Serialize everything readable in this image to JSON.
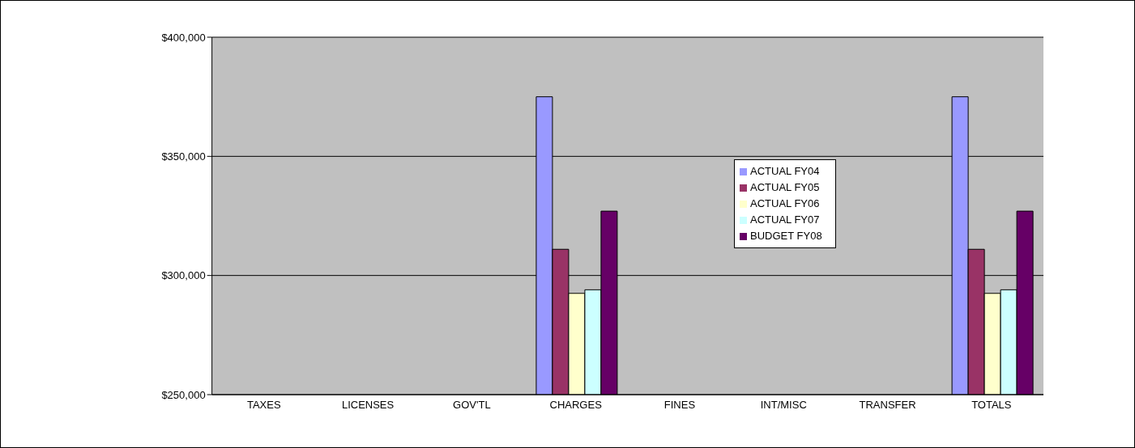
{
  "chart_data": {
    "type": "bar",
    "categories": [
      "TAXES",
      "LICENSES",
      "GOV'TL",
      "CHARGES",
      "FINES",
      "INT/MISC",
      "TRANSFER",
      "TOTALS"
    ],
    "series": [
      {
        "name": "ACTUAL FY04",
        "color": "#9999ff",
        "values": [
          null,
          null,
          null,
          375000,
          null,
          null,
          null,
          375000
        ]
      },
      {
        "name": "ACTUAL FY05",
        "color": "#993366",
        "values": [
          null,
          null,
          null,
          311000,
          null,
          null,
          null,
          311000
        ]
      },
      {
        "name": "ACTUAL FY06",
        "color": "#ffffcc",
        "values": [
          null,
          null,
          null,
          292500,
          null,
          null,
          null,
          292500
        ]
      },
      {
        "name": "ACTUAL FY07",
        "color": "#ccffff",
        "values": [
          null,
          null,
          null,
          294000,
          null,
          null,
          null,
          294000
        ]
      },
      {
        "name": "BUDGET FY08",
        "color": "#660066",
        "values": [
          null,
          null,
          null,
          327000,
          null,
          null,
          null,
          327000
        ]
      }
    ],
    "ylim": [
      250000,
      400000
    ],
    "yticks": [
      {
        "value": 250000,
        "label": "$250,000"
      },
      {
        "value": 300000,
        "label": "$300,000"
      },
      {
        "value": 350000,
        "label": "$350,000"
      },
      {
        "value": 400000,
        "label": "$400,000"
      }
    ],
    "grid": "y",
    "legend": "right"
  }
}
